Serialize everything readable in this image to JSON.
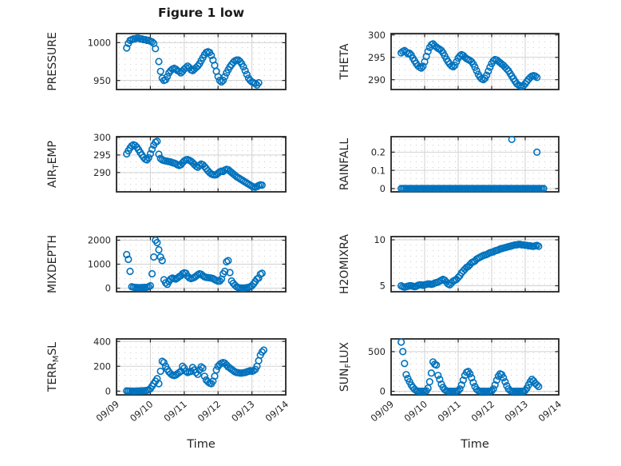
{
  "figure": {
    "title": "Figure 1 low",
    "xlabel": "Time",
    "x_ticklabels": [
      "09/09",
      "09/10",
      "09/11",
      "09/12",
      "09/13",
      "09/14"
    ],
    "x_tick_values": [
      0,
      1,
      2,
      3,
      4,
      5
    ],
    "xlim": [
      0,
      5
    ],
    "colors": {
      "marker": "#0072BD",
      "axis": "#252525",
      "grid": "#d2d2d2",
      "minor_dot": "#cfcfcf",
      "text": "#262626"
    }
  },
  "chart_data": [
    {
      "id": "pressure",
      "type": "scatter",
      "ylabel_text": "PRESSURE",
      "ylabel_parts": [
        {
          "t": "PRESSURE",
          "sub": false
        }
      ],
      "ytick_values": [
        950,
        1000
      ],
      "ytick_labels": [
        "950",
        "1000"
      ],
      "ylim": [
        938,
        1012
      ],
      "grid": true,
      "legend": "none",
      "x0": 0.3,
      "dx": 0.05,
      "y": [
        993,
        999,
        1003,
        1004,
        1005,
        1005,
        1006,
        1006,
        1005,
        1005,
        1004,
        1004,
        1003,
        1003,
        1002,
        1001,
        999,
        992,
        null,
        975,
        962,
        953,
        950,
        951,
        955,
        960,
        963,
        965,
        966,
        965,
        963,
        962,
        960,
        962,
        965,
        967,
        969,
        967,
        964,
        963,
        965,
        967,
        969,
        972,
        976,
        980,
        984,
        987,
        988,
        987,
        983,
        977,
        970,
        962,
        955,
        950,
        948,
        950,
        955,
        960,
        964,
        968,
        971,
        974,
        976,
        977,
        977,
        975,
        972,
        968,
        963,
        958,
        953,
        950,
        948,
        947,
        946,
        944,
        947
      ],
      "extra": []
    },
    {
      "id": "theta",
      "type": "scatter",
      "ylabel_text": "THETA",
      "ylabel_parts": [
        {
          "t": "THETA",
          "sub": false
        }
      ],
      "ytick_values": [
        290,
        295,
        300
      ],
      "ytick_labels": [
        "290",
        "295",
        "300"
      ],
      "ylim": [
        287.8,
        300.3
      ],
      "grid": true,
      "legend": "none",
      "x0": 0.3,
      "dx": 0.05,
      "y": [
        296.0,
        296.3,
        296.5,
        296.2,
        295.8,
        295.9,
        295.5,
        294.8,
        294.2,
        293.6,
        293.1,
        292.8,
        292.6,
        293.0,
        294.0,
        295.2,
        296.3,
        297.2,
        297.8,
        298.0,
        297.6,
        297.3,
        297.0,
        296.8,
        296.5,
        296.0,
        295.3,
        294.6,
        294.0,
        293.5,
        293.1,
        292.9,
        293.2,
        294.0,
        294.8,
        295.3,
        295.6,
        295.4,
        295.0,
        294.7,
        294.5,
        294.3,
        294.0,
        293.5,
        292.8,
        292.0,
        291.2,
        290.6,
        290.2,
        290.0,
        290.3,
        291.0,
        291.9,
        292.8,
        293.6,
        294.2,
        294.5,
        294.4,
        294.1,
        293.8,
        293.5,
        293.2,
        292.8,
        292.4,
        292.0,
        291.4,
        290.8,
        290.2,
        289.6,
        289.1,
        288.8,
        288.6,
        288.5,
        288.7,
        289.1,
        289.6,
        290.1,
        290.5,
        290.8,
        290.9,
        290.8,
        290.5
      ],
      "extra": []
    },
    {
      "id": "air-temp",
      "type": "scatter",
      "ylabel_text": "AIR_TEMP",
      "ylabel_parts": [
        {
          "t": "AIR",
          "sub": false
        },
        {
          "t": "T",
          "sub": true
        },
        {
          "t": "EMP",
          "sub": false
        }
      ],
      "ytick_values": [
        290,
        295,
        300
      ],
      "ytick_labels": [
        "290",
        "295",
        "300"
      ],
      "ylim": [
        284.5,
        300.2
      ],
      "grid": true,
      "legend": "none",
      "x0": 0.3,
      "dx": 0.05,
      "y": [
        295.3,
        296.2,
        297.0,
        297.6,
        297.9,
        297.7,
        297.2,
        296.5,
        295.7,
        295.0,
        294.3,
        293.8,
        293.6,
        294.2,
        295.3,
        296.6,
        297.8,
        298.6,
        298.9,
        295.2,
        294.0,
        293.6,
        293.4,
        293.3,
        293.2,
        293.1,
        293.0,
        292.8,
        292.7,
        292.5,
        292.2,
        292.0,
        292.2,
        292.8,
        293.3,
        293.6,
        293.7,
        293.5,
        293.2,
        292.8,
        292.3,
        291.8,
        291.5,
        292.0,
        292.4,
        292.2,
        291.7,
        291.1,
        290.5,
        290.0,
        289.6,
        289.4,
        289.3,
        289.4,
        289.8,
        290.2,
        290.4,
        290.3,
        290.7,
        290.9,
        290.8,
        290.4,
        290.0,
        289.6,
        289.2,
        288.8,
        288.5,
        288.2,
        287.9,
        287.6,
        287.3,
        287.0,
        286.7,
        286.4,
        286.1,
        285.9,
        285.8,
        286.0,
        286.3,
        286.5,
        286.4
      ],
      "extra": []
    },
    {
      "id": "rainfall",
      "type": "scatter",
      "ylabel_text": "RAINFALL",
      "ylabel_parts": [
        {
          "t": "RAINFALL",
          "sub": false
        }
      ],
      "ytick_values": [
        0,
        0.1,
        0.2
      ],
      "ytick_labels": [
        "0",
        "0.1",
        "0.2"
      ],
      "ylim": [
        -0.018,
        0.285
      ],
      "grid": true,
      "legend": "none",
      "x0": 0.3,
      "dx": 0.05,
      "y": [
        0,
        0,
        0,
        0,
        0,
        0,
        0,
        0,
        0,
        0,
        0,
        0,
        0,
        0,
        0,
        0,
        0,
        0,
        0,
        0,
        0,
        0,
        0,
        0,
        0,
        0,
        0,
        0,
        0,
        0,
        0,
        0,
        0,
        0,
        0,
        0,
        0,
        0,
        0,
        0,
        0,
        0,
        0,
        0,
        0,
        0,
        0,
        0,
        0,
        0,
        0,
        0,
        0,
        0,
        0,
        0,
        0,
        0,
        0,
        0,
        0,
        0,
        0,
        0,
        0,
        0,
        0,
        0,
        0,
        0,
        0,
        0,
        0,
        0,
        0,
        0,
        0,
        0,
        0,
        0,
        0,
        0,
        0,
        0,
        0,
        0
      ],
      "extra": [
        [
          3.6,
          0.27
        ],
        [
          4.35,
          0.2
        ]
      ]
    },
    {
      "id": "mixdepth",
      "type": "scatter",
      "ylabel_text": "MIXDEPTH",
      "ylabel_parts": [
        {
          "t": "MIXDEPTH",
          "sub": false
        }
      ],
      "ytick_values": [
        0,
        1000,
        2000
      ],
      "ytick_labels": [
        "0",
        "1000",
        "2000"
      ],
      "ylim": [
        -150,
        2150
      ],
      "grid": true,
      "legend": "none",
      "x0": 0.3,
      "dx": 0.05,
      "y": [
        1400,
        1200,
        700,
        60,
        40,
        30,
        25,
        20,
        20,
        25,
        30,
        35,
        40,
        60,
        100,
        600,
        1300,
        2000,
        1900,
        1600,
        1300,
        1150,
        350,
        220,
        160,
        280,
        380,
        420,
        400,
        380,
        420,
        480,
        520,
        600,
        640,
        620,
        500,
        430,
        400,
        420,
        450,
        500,
        560,
        600,
        580,
        520,
        470,
        450,
        440,
        430,
        420,
        400,
        360,
        320,
        290,
        300,
        380,
        600,
        700,
        1100,
        1150,
        650,
        300,
        200,
        120,
        60,
        20,
        10,
        5,
        5,
        10,
        20,
        30,
        60,
        100,
        180,
        280,
        380,
        420,
        580,
        620
      ],
      "extra": []
    },
    {
      "id": "h2omixra",
      "type": "scatter",
      "ylabel_text": "H2OMIXRA",
      "ylabel_parts": [
        {
          "t": "H2OMIXRA",
          "sub": false
        }
      ],
      "ytick_values": [
        5,
        10
      ],
      "ytick_labels": [
        "5",
        "10"
      ],
      "ylim": [
        4.35,
        10.35
      ],
      "grid": true,
      "legend": "none",
      "x0": 0.3,
      "dx": 0.05,
      "y": [
        5.0,
        4.9,
        4.85,
        4.9,
        4.95,
        5.0,
        5.0,
        4.95,
        4.9,
        4.95,
        5.05,
        5.1,
        5.1,
        5.05,
        5.1,
        5.15,
        5.2,
        5.2,
        5.15,
        5.2,
        5.3,
        5.35,
        5.4,
        5.5,
        5.6,
        5.7,
        5.6,
        5.4,
        5.2,
        5.1,
        5.3,
        5.5,
        5.6,
        5.7,
        5.9,
        6.1,
        6.4,
        6.6,
        6.8,
        7.0,
        7.1,
        7.3,
        7.5,
        7.6,
        7.7,
        7.9,
        8.0,
        8.1,
        8.2,
        8.3,
        8.35,
        8.4,
        8.5,
        8.6,
        8.65,
        8.7,
        8.8,
        8.85,
        8.9,
        9.0,
        9.05,
        9.1,
        9.15,
        9.2,
        9.25,
        9.3,
        9.35,
        9.4,
        9.45,
        9.45,
        9.5,
        9.5,
        9.45,
        9.45,
        9.4,
        9.4,
        9.35,
        9.35,
        9.3,
        9.3,
        9.35,
        9.4,
        9.3
      ],
      "extra": []
    },
    {
      "id": "terr-msl",
      "type": "scatter",
      "ylabel_text": "TERR_MSL",
      "ylabel_parts": [
        {
          "t": "TERR",
          "sub": false
        },
        {
          "t": "M",
          "sub": true
        },
        {
          "t": "SL",
          "sub": false
        }
      ],
      "ytick_values": [
        0,
        200,
        400
      ],
      "ytick_labels": [
        "0",
        "200",
        "400"
      ],
      "ylim": [
        -30,
        420
      ],
      "grid": true,
      "legend": "none",
      "x0": 0.3,
      "dx": 0.05,
      "y": [
        2,
        1,
        1,
        0,
        0,
        0,
        1,
        1,
        2,
        2,
        3,
        4,
        6,
        10,
        20,
        40,
        60,
        80,
        100,
        60,
        160,
        240,
        230,
        200,
        175,
        155,
        140,
        130,
        125,
        130,
        140,
        150,
        160,
        200,
        185,
        160,
        150,
        155,
        160,
        190,
        170,
        150,
        135,
        170,
        195,
        185,
        120,
        90,
        75,
        65,
        60,
        80,
        120,
        170,
        200,
        215,
        225,
        230,
        225,
        210,
        195,
        185,
        175,
        165,
        155,
        150,
        148,
        145,
        145,
        148,
        150,
        155,
        160,
        165,
        160,
        165,
        175,
        200,
        245,
        290,
        315,
        330
      ],
      "extra": []
    },
    {
      "id": "sun-flux",
      "type": "scatter",
      "ylabel_text": "SUN_FLUX",
      "ylabel_parts": [
        {
          "t": "SUN",
          "sub": false
        },
        {
          "t": "F",
          "sub": true
        },
        {
          "t": "LUX",
          "sub": false
        }
      ],
      "ytick_values": [
        0,
        500
      ],
      "ytick_labels": [
        "0",
        "500"
      ],
      "ylim": [
        -45,
        660
      ],
      "grid": true,
      "legend": "none",
      "x0": 0.3,
      "dx": 0.05,
      "y": [
        620,
        500,
        350,
        210,
        160,
        120,
        80,
        50,
        25,
        10,
        0,
        0,
        0,
        0,
        0,
        5,
        40,
        120,
        230,
        370,
        340,
        330,
        200,
        150,
        90,
        50,
        20,
        5,
        0,
        0,
        0,
        0,
        0,
        0,
        5,
        30,
        80,
        140,
        200,
        240,
        250,
        220,
        170,
        110,
        60,
        25,
        8,
        0,
        0,
        0,
        0,
        0,
        0,
        0,
        5,
        30,
        80,
        140,
        190,
        220,
        210,
        170,
        120,
        70,
        30,
        10,
        0,
        0,
        0,
        0,
        0,
        0,
        0,
        0,
        10,
        40,
        80,
        120,
        150,
        130,
        100,
        80,
        60
      ],
      "extra": []
    }
  ]
}
